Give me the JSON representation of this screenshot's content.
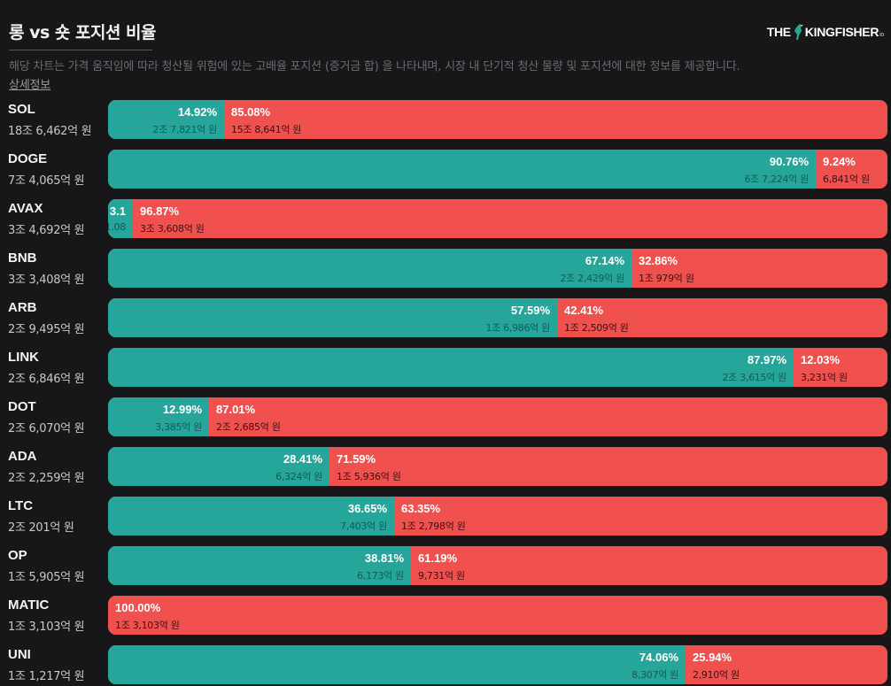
{
  "header": {
    "title": "롱 vs 숏 포지션 비율",
    "logo_left": "THE",
    "logo_right": "KINGFISHER",
    "logo_suffix": "io",
    "description": "해당 차트는 가격 움직임에 따라 청산될 위험에 있는 고배율 포지션 (증거금 합) 을 나타내며, 시장 내 단기적 청산 물량 및 포지션에 대한 정보를 제공합니다.",
    "detail_link": "상세정보"
  },
  "colors": {
    "long": "#26a69a",
    "short": "#f0514f",
    "background": "#17171a"
  },
  "chart_data": {
    "type": "bar",
    "orientation": "horizontal-stacked-100",
    "categories": [
      "SOL",
      "DOGE",
      "AVAX",
      "BNB",
      "ARB",
      "LINK",
      "DOT",
      "ADA",
      "LTC",
      "OP",
      "MATIC",
      "UNI"
    ],
    "rows": [
      {
        "symbol": "SOL",
        "total": "18조 6,462억 원",
        "long_pct": 14.92,
        "short_pct": 85.08,
        "long_label": "14.92%",
        "short_label": "85.08%",
        "long_amount": "2조 7,821억 원",
        "short_amount": "15조 8,641억 원"
      },
      {
        "symbol": "DOGE",
        "total": "7조 4,065억 원",
        "long_pct": 90.76,
        "short_pct": 9.24,
        "long_label": "90.76%",
        "short_label": "9.24%",
        "long_amount": "6조 7,224억 원",
        "short_amount": "6,841억 원"
      },
      {
        "symbol": "AVAX",
        "total": "3조 4,692억 원",
        "long_pct": 3.13,
        "short_pct": 96.87,
        "long_label": "3.1",
        "short_label": "96.87%",
        "long_amount": "1,08",
        "short_amount": "3조 3,608억 원"
      },
      {
        "symbol": "BNB",
        "total": "3조 3,408억 원",
        "long_pct": 67.14,
        "short_pct": 32.86,
        "long_label": "67.14%",
        "short_label": "32.86%",
        "long_amount": "2조 2,429억 원",
        "short_amount": "1조 979억 원"
      },
      {
        "symbol": "ARB",
        "total": "2조 9,495억 원",
        "long_pct": 57.59,
        "short_pct": 42.41,
        "long_label": "57.59%",
        "short_label": "42.41%",
        "long_amount": "1조 6,986억 원",
        "short_amount": "1조 2,509억 원"
      },
      {
        "symbol": "LINK",
        "total": "2조 6,846억 원",
        "long_pct": 87.97,
        "short_pct": 12.03,
        "long_label": "87.97%",
        "short_label": "12.03%",
        "long_amount": "2조 3,615억 원",
        "short_amount": "3,231억 원"
      },
      {
        "symbol": "DOT",
        "total": "2조 6,070억 원",
        "long_pct": 12.99,
        "short_pct": 87.01,
        "long_label": "12.99%",
        "short_label": "87.01%",
        "long_amount": "3,385억 원",
        "short_amount": "2조 2,685억 원"
      },
      {
        "symbol": "ADA",
        "total": "2조 2,259억 원",
        "long_pct": 28.41,
        "short_pct": 71.59,
        "long_label": "28.41%",
        "short_label": "71.59%",
        "long_amount": "6,324억 원",
        "short_amount": "1조 5,936억 원"
      },
      {
        "symbol": "LTC",
        "total": "2조 201억 원",
        "long_pct": 36.65,
        "short_pct": 63.35,
        "long_label": "36.65%",
        "short_label": "63.35%",
        "long_amount": "7,403억 원",
        "short_amount": "1조 2,798억 원"
      },
      {
        "symbol": "OP",
        "total": "1조 5,905억 원",
        "long_pct": 38.81,
        "short_pct": 61.19,
        "long_label": "38.81%",
        "short_label": "61.19%",
        "long_amount": "6,173억 원",
        "short_amount": "9,731억 원"
      },
      {
        "symbol": "MATIC",
        "total": "1조 3,103억 원",
        "long_pct": 0,
        "short_pct": 100.0,
        "long_label": "",
        "short_label": "100.00%",
        "long_amount": "",
        "short_amount": "1조 3,103억 원"
      },
      {
        "symbol": "UNI",
        "total": "1조 1,217억 원",
        "long_pct": 74.06,
        "short_pct": 25.94,
        "long_label": "74.06%",
        "short_label": "25.94%",
        "long_amount": "8,307억 원",
        "short_amount": "2,910억 원"
      }
    ],
    "xlim": [
      0,
      100
    ]
  }
}
